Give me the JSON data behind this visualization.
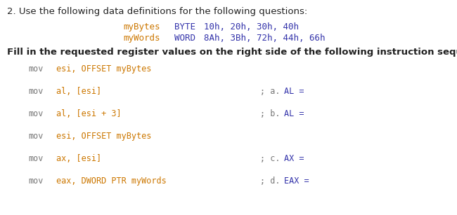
{
  "bg_color": "#ffffff",
  "title_line": "2. Use the following data definitions for the following questions:",
  "title_fontsize": 9.5,
  "def_mybytes": "myBytes",
  "def_byte": "BYTE",
  "def_vals1": "10h, 20h, 30h, 40h",
  "def_mywords": "myWords",
  "def_word": "WORD",
  "def_vals2": "8Ah, 3Bh, 72h, 44h, 66h",
  "subtitle": "Fill in the requested register values on the right side of the following instruction sequence.",
  "subtitle_fontsize": 9.5,
  "orange_color": "#cc7700",
  "blue_color": "#3333aa",
  "gray_color": "#777777",
  "black_color": "#222222",
  "mono_fontsize": 8.5,
  "def_fontsize": 9.0,
  "instructions": [
    {
      "kw": "mov",
      "op": "esi, OFFSET myBytes",
      "comment_prefix": "",
      "comment_letter": "",
      "comment_reg": "",
      "has_comment": false
    },
    {
      "kw": "mov",
      "op": "al, [esi]",
      "comment_prefix": "; a. ",
      "comment_letter": "",
      "comment_reg": "AL =",
      "has_comment": true
    },
    {
      "kw": "mov",
      "op": "al, [esi + 3]",
      "comment_prefix": "; b. ",
      "comment_letter": "",
      "comment_reg": "AL =",
      "has_comment": true
    },
    {
      "kw": "mov",
      "op": "esi, OFFSET myBytes",
      "comment_prefix": "",
      "comment_letter": "",
      "comment_reg": "",
      "has_comment": false
    },
    {
      "kw": "mov",
      "op": "ax, [esi]",
      "comment_prefix": "; c. ",
      "comment_letter": "",
      "comment_reg": "AX =",
      "has_comment": true
    },
    {
      "kw": "mov",
      "op": "eax, DWORD PTR myWords",
      "comment_prefix": "; d. ",
      "comment_letter": "",
      "comment_reg": "EAX =",
      "has_comment": true
    }
  ]
}
